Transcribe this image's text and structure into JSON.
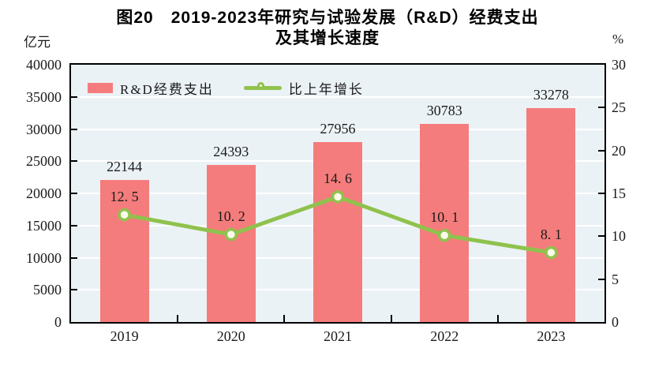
{
  "title": {
    "line1": "图20　2019-2023年研究与试验发展（R&D）经费支出",
    "line2": "及其增长速度"
  },
  "axes": {
    "left_unit": "亿元",
    "right_unit": "%",
    "left_ticks": [
      0,
      5000,
      10000,
      15000,
      20000,
      25000,
      30000,
      35000,
      40000
    ],
    "right_ticks": [
      0,
      5,
      10,
      15,
      20,
      25,
      30
    ]
  },
  "legend": {
    "bar_label": "R&D经费支出",
    "line_label": "比上年增长"
  },
  "colors": {
    "bar": "#f57c7c",
    "line": "#8fc24d",
    "marker_fill": "#fbfbea",
    "plot_bg": "#ebf2f6",
    "grid": "#ffffff",
    "axis": "#000000",
    "text": "#1a1a1a"
  },
  "chart_data": {
    "type": "bar",
    "subtype": "bar+line dual-axis",
    "title": "图20 2019-2023年研究与试验发展（R&D）经费支出及其增长速度",
    "categories": [
      "2019",
      "2020",
      "2021",
      "2022",
      "2023"
    ],
    "series": [
      {
        "name": "R&D经费支出",
        "type": "bar",
        "axis": "left",
        "unit": "亿元",
        "values": [
          22144,
          24393,
          27956,
          30783,
          33278
        ],
        "labels": [
          "22144",
          "24393",
          "27956",
          "30783",
          "33278"
        ]
      },
      {
        "name": "比上年增长",
        "type": "line",
        "axis": "right",
        "unit": "%",
        "values": [
          12.5,
          10.2,
          14.6,
          10.1,
          8.1
        ],
        "labels": [
          "12. 5",
          "10. 2",
          "14. 6",
          "10. 1",
          "8. 1"
        ]
      }
    ],
    "left_ylim": [
      0,
      40000
    ],
    "right_ylim": [
      0,
      30
    ],
    "grid": true,
    "legend_position": "top-left-inside"
  }
}
